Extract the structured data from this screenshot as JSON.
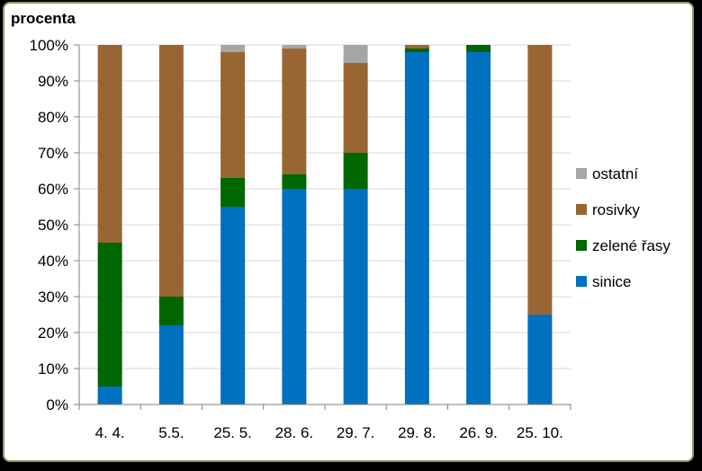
{
  "chart_data": {
    "type": "bar",
    "stacked": true,
    "ylabel": "procenta",
    "xlabel": "",
    "ylim": [
      0,
      100
    ],
    "yticks": [
      "0%",
      "10%",
      "20%",
      "30%",
      "40%",
      "50%",
      "60%",
      "70%",
      "80%",
      "90%",
      "100%"
    ],
    "grid": true,
    "legend": "right",
    "categories": [
      "4. 4.",
      "5.5.",
      "25. 5.",
      "28. 6.",
      "29. 7.",
      "29. 8.",
      "26. 9.",
      "25. 10."
    ],
    "series": [
      {
        "name": "sinice",
        "color": "#0070c0",
        "values": [
          5,
          22,
          55,
          60,
          60,
          98,
          98,
          25
        ]
      },
      {
        "name": "zelené řasy",
        "color": "#006600",
        "values": [
          40,
          8,
          8,
          4,
          10,
          1,
          2,
          0
        ]
      },
      {
        "name": "rosivky",
        "color": "#996633",
        "values": [
          55,
          70,
          35,
          35,
          25,
          1,
          0,
          75
        ]
      },
      {
        "name": "ostatní",
        "color": "#a6a6a6",
        "values": [
          0,
          0,
          2,
          1,
          5,
          0,
          0,
          0
        ]
      }
    ]
  }
}
